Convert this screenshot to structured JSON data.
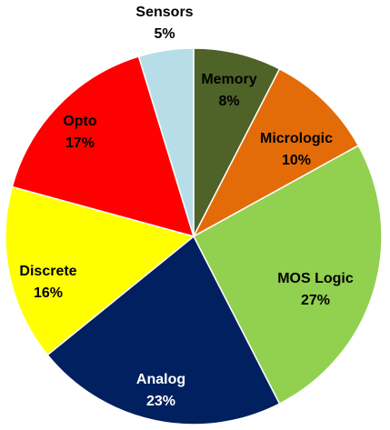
{
  "chart_data": {
    "type": "pie",
    "title": "",
    "start_angle_deg": 0,
    "direction": "clockwise",
    "slices": [
      {
        "label": "Memory",
        "value": 8,
        "display": "8%",
        "color": "#4f6228",
        "label_color": "#000000"
      },
      {
        "label": "Micrologic",
        "value": 10,
        "display": "10%",
        "color": "#e36c09",
        "label_color": "#000000"
      },
      {
        "label": "MOS Logic",
        "value": 27,
        "display": "27%",
        "color": "#92d050",
        "label_color": "#000000"
      },
      {
        "label": "Analog",
        "value": 23,
        "display": "23%",
        "color": "#002060",
        "label_color": "#ffffff"
      },
      {
        "label": "Discrete",
        "value": 16,
        "display": "16%",
        "color": "#ffff00",
        "label_color": "#000000"
      },
      {
        "label": "Opto",
        "value": 17,
        "display": "17%",
        "color": "#ff0000",
        "label_color": "#000000"
      },
      {
        "label": "Sensors",
        "value": 5,
        "display": "5%",
        "color": "#b7dee8",
        "label_color": "#000000",
        "label_outside": true
      }
    ]
  }
}
